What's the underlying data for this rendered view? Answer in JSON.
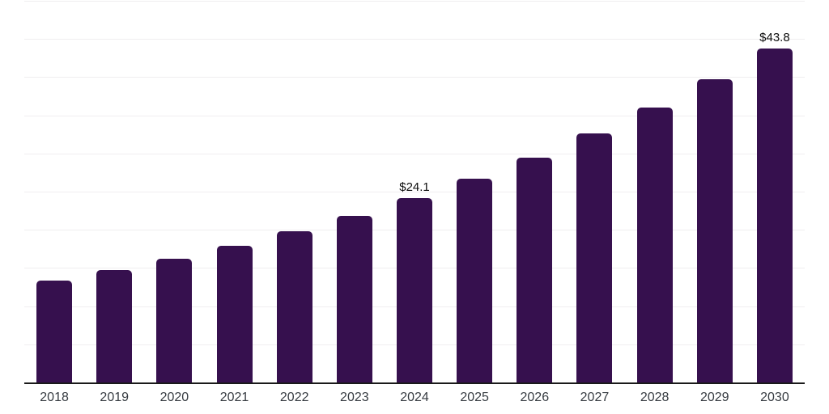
{
  "chart_data": {
    "type": "bar",
    "title": "",
    "xlabel": "",
    "ylabel": "",
    "categories": [
      "2018",
      "2019",
      "2020",
      "2021",
      "2022",
      "2023",
      "2024",
      "2025",
      "2026",
      "2027",
      "2028",
      "2029",
      "2030"
    ],
    "values": [
      13.3,
      14.7,
      16.2,
      17.9,
      19.8,
      21.8,
      24.1,
      26.7,
      29.5,
      32.6,
      36.0,
      39.7,
      43.8
    ],
    "data_labels": {
      "2024": "$24.1",
      "2030": "$43.8"
    },
    "ylim": [
      0,
      50
    ],
    "grid_step": 5,
    "grid": "horizontal",
    "legend": "none",
    "colors": {
      "bar": "#36104e",
      "gridline": "#f0eef0",
      "axis_line": "#1a1a1a",
      "tick_label": "#363b41",
      "data_label": "#0d0d0d",
      "background": "#ffffff"
    }
  }
}
